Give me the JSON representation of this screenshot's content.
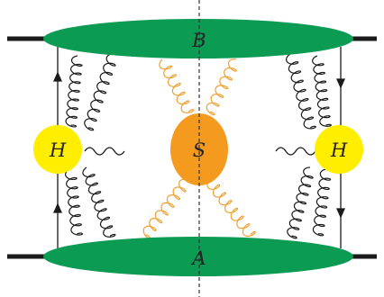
{
  "labels": {
    "upper_blob": "B",
    "lower_blob": "A",
    "soft_blob": "S",
    "left_hard": "H",
    "right_hard": "H"
  },
  "colors": {
    "beam_line": "#1a1a1a",
    "collinear_blob": "#0c9b52",
    "soft_blob": "#f49a1e",
    "hard_vertex": "#ffee00",
    "soft_gluon": "#f0a030",
    "collinear_gluon": "#1a1a1a",
    "cut_line": "#333333"
  }
}
